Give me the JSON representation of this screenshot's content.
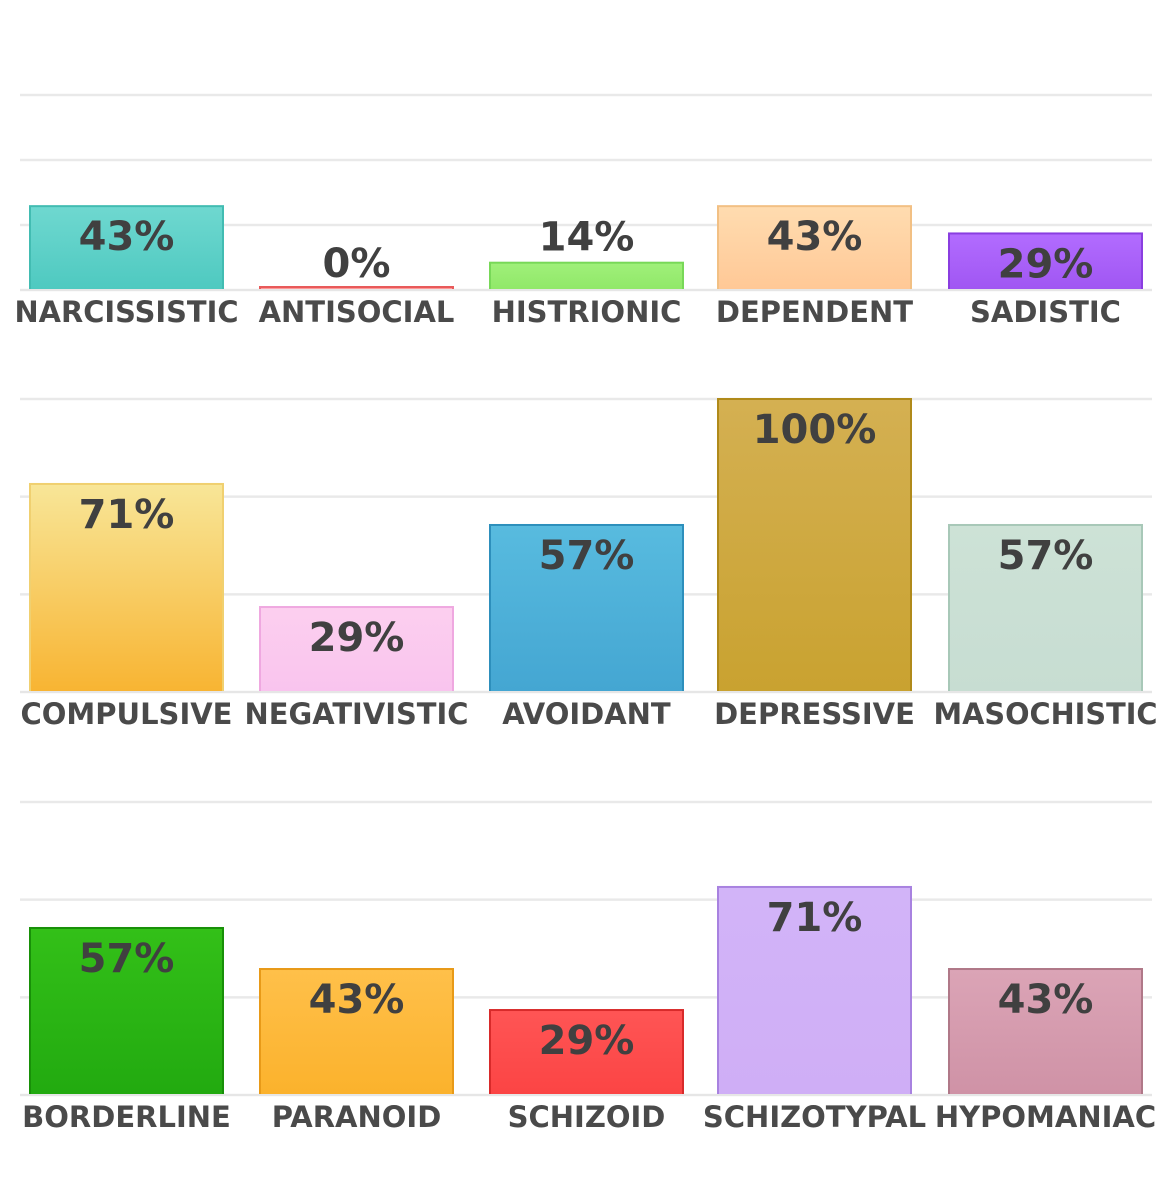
{
  "chart_data": [
    {
      "type": "bar",
      "categories": [
        "NARCISSISTIC",
        "ANTISOCIAL",
        "HISTRIONIC",
        "DEPENDENT",
        "SADISTIC"
      ],
      "values": [
        43,
        0,
        14,
        43,
        29
      ],
      "value_labels": [
        "43%",
        "0%",
        "14%",
        "43%",
        "29%"
      ],
      "colors": [
        [
          "#6fd8d0",
          "#4ec9c0"
        ],
        [
          "#ffb0b0",
          "#ff8080"
        ],
        [
          "#a0f07a",
          "#90e868"
        ],
        [
          "#ffdcb0",
          "#ffc896"
        ],
        [
          "#b26cff",
          "#a056f2"
        ]
      ],
      "edge_colors": [
        "#42bcb2",
        "#e85a5a",
        "#78d858",
        "#f2c084",
        "#8a3ee0"
      ],
      "ylim": [
        0,
        100
      ],
      "grid": true,
      "legend": "none",
      "title": "",
      "xlabel": "",
      "ylabel": ""
    },
    {
      "type": "bar",
      "categories": [
        "COMPULSIVE",
        "NEGATIVISTIC",
        "AVOIDANT",
        "DEPRESSIVE",
        "MASOCHISTIC"
      ],
      "values": [
        71,
        29,
        57,
        100,
        57
      ],
      "value_labels": [
        "71%",
        "29%",
        "57%",
        "100%",
        "57%"
      ],
      "colors": [
        [
          "#f8e698",
          "#f8b432"
        ],
        [
          "#fccfef",
          "#f9c4ee"
        ],
        [
          "#58bbdf",
          "#44a6d2"
        ],
        [
          "#d4b052",
          "#c9a230"
        ],
        [
          "#cde2d6",
          "#c7ddd2"
        ]
      ],
      "edge_colors": [
        "#f0d070",
        "#efa8e0",
        "#2d8fbc",
        "#b08a1a",
        "#a8c8b8"
      ],
      "ylim": [
        0,
        100
      ],
      "grid": true,
      "legend": "none",
      "title": "",
      "xlabel": "",
      "ylabel": ""
    },
    {
      "type": "bar",
      "categories": [
        "BORDERLINE",
        "PARANOID",
        "SCHIZOID",
        "SCHIZOTYPAL",
        "HYPOMANIAC"
      ],
      "values": [
        57,
        43,
        29,
        71,
        43
      ],
      "value_labels": [
        "57%",
        "43%",
        "29%",
        "71%",
        "43%"
      ],
      "colors": [
        [
          "#33c018",
          "#22aa10"
        ],
        [
          "#ffc04a",
          "#fbb22c"
        ],
        [
          "#ff5555",
          "#fb4444"
        ],
        [
          "#d2b4f8",
          "#cfaef6"
        ],
        [
          "#dba4b6",
          "#cf92a6"
        ]
      ],
      "edge_colors": [
        "#189008",
        "#e89a18",
        "#d82a2a",
        "#a882e0",
        "#b07888"
      ],
      "ylim": [
        0,
        100
      ],
      "grid": true,
      "legend": "none",
      "title": "",
      "xlabel": "",
      "ylabel": ""
    }
  ]
}
